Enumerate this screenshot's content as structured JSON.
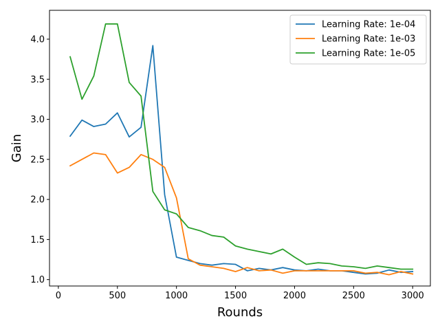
{
  "chart_data": {
    "type": "line",
    "title": "",
    "xlabel": "Rounds",
    "ylabel": "Gain",
    "xlim": [
      -75,
      3150
    ],
    "ylim": [
      0.92,
      4.36
    ],
    "xticks": [
      0,
      500,
      1000,
      1500,
      2000,
      2500,
      3000
    ],
    "xtick_labels": [
      "0",
      "500",
      "1000",
      "1500",
      "2000",
      "2500",
      "3000"
    ],
    "yticks": [
      1.0,
      1.5,
      2.0,
      2.5,
      3.0,
      3.5,
      4.0
    ],
    "ytick_labels": [
      "1.0",
      "1.5",
      "2.0",
      "2.5",
      "3.0",
      "3.5",
      "4.0"
    ],
    "grid": false,
    "legend_position": "top-right",
    "x": [
      100,
      200,
      300,
      400,
      500,
      600,
      700,
      800,
      900,
      1000,
      1100,
      1200,
      1300,
      1400,
      1500,
      1600,
      1700,
      1800,
      1900,
      2000,
      2100,
      2200,
      2300,
      2400,
      2500,
      2600,
      2700,
      2800,
      2900,
      3000
    ],
    "series": [
      {
        "name": "Learning Rate: 1e-04",
        "color": "#1f77b4",
        "values": [
          2.79,
          2.99,
          2.91,
          2.94,
          3.08,
          2.78,
          2.9,
          3.92,
          2.06,
          1.28,
          1.24,
          1.2,
          1.18,
          1.2,
          1.19,
          1.11,
          1.14,
          1.12,
          1.15,
          1.12,
          1.11,
          1.13,
          1.11,
          1.11,
          1.09,
          1.07,
          1.08,
          1.12,
          1.09,
          1.1
        ]
      },
      {
        "name": "Learning Rate: 1e-03",
        "color": "#ff7f0e",
        "values": [
          2.42,
          2.5,
          2.58,
          2.56,
          2.33,
          2.4,
          2.56,
          2.5,
          2.4,
          2.02,
          1.26,
          1.18,
          1.16,
          1.14,
          1.1,
          1.15,
          1.11,
          1.12,
          1.08,
          1.11,
          1.11,
          1.11,
          1.11,
          1.11,
          1.11,
          1.08,
          1.09,
          1.06,
          1.1,
          1.07
        ]
      },
      {
        "name": "Learning Rate: 1e-05",
        "color": "#2ca02c",
        "values": [
          3.78,
          3.25,
          3.54,
          4.19,
          4.19,
          3.46,
          3.29,
          2.1,
          1.87,
          1.82,
          1.65,
          1.61,
          1.55,
          1.53,
          1.42,
          1.38,
          1.35,
          1.32,
          1.38,
          1.28,
          1.19,
          1.21,
          1.2,
          1.17,
          1.16,
          1.14,
          1.17,
          1.15,
          1.13,
          1.13
        ]
      }
    ]
  }
}
